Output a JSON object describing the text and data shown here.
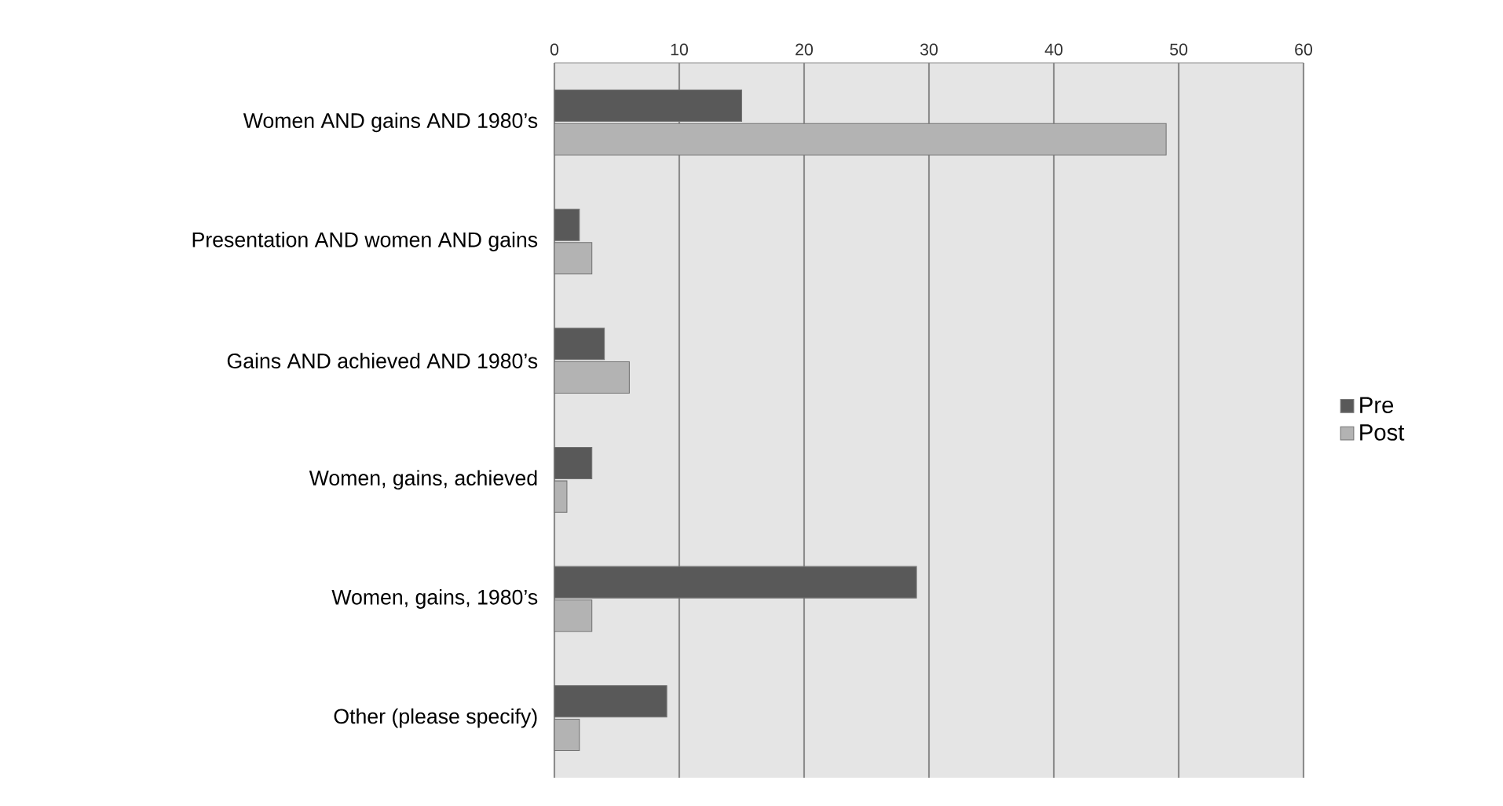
{
  "chart_data": {
    "type": "bar",
    "orientation": "horizontal",
    "categories": [
      "Women AND gains AND 1980’s",
      "Presentation AND women AND gains",
      "Gains AND achieved AND 1980’s",
      "Women, gains, achieved",
      "Women, gains, 1980’s",
      "Other (please specify)"
    ],
    "series": [
      {
        "name": "Pre",
        "color": "#595959",
        "values": [
          15,
          2,
          4,
          3,
          29,
          9
        ]
      },
      {
        "name": "Post",
        "color": "#b3b3b3",
        "values": [
          49,
          3,
          6,
          1,
          3,
          2
        ]
      }
    ],
    "xlim": [
      0,
      60
    ],
    "xticks": [
      0,
      10,
      20,
      30,
      40,
      50,
      60
    ],
    "grid": "x",
    "legend": "right"
  }
}
